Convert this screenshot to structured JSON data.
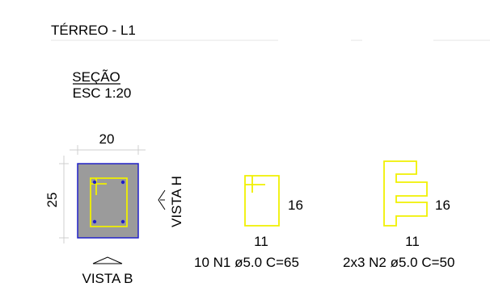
{
  "title": "TÉRREO - L1",
  "section": {
    "heading": "SEÇÃO",
    "scale": "ESC 1:20",
    "width_dim": "20",
    "height_dim": "25",
    "view_h": "VISTA H",
    "view_b": "VISTA B"
  },
  "bars": [
    {
      "label": "10 N1 ø5.0 C=65",
      "side_dim": "16",
      "bottom_dim": "11"
    },
    {
      "label": "2x3 N2 ø5.0 C=50",
      "side_dim": "16",
      "bottom_dim": "11"
    }
  ],
  "colors": {
    "concrete_fill": "#9b9b9b",
    "section_outline": "#2020c8",
    "rebar": "#f0f000",
    "bar_dots": "#2020c8",
    "dimension_lines": "#cfcfcf"
  }
}
